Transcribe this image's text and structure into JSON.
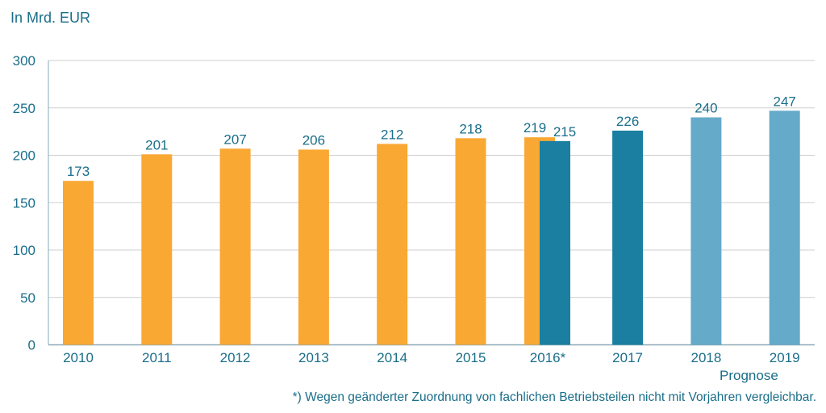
{
  "chart_data": {
    "type": "bar",
    "unit_label": "In Mrd. EUR",
    "categories": [
      "2010",
      "2011",
      "2012",
      "2013",
      "2014",
      "2015",
      "2016*",
      "2017",
      "2018",
      "2019"
    ],
    "category_note": {
      "2018-2019": "Prognose"
    },
    "series": [
      {
        "values": [
          173,
          201,
          207,
          206,
          212,
          218,
          219,
          null,
          null,
          null
        ],
        "color": "#F9A834"
      },
      {
        "values": [
          null,
          null,
          null,
          null,
          null,
          null,
          215,
          226,
          null,
          null
        ],
        "color": "#1A7FA0"
      },
      {
        "values": [
          null,
          null,
          null,
          null,
          null,
          null,
          null,
          null,
          240,
          247
        ],
        "color": "#66AACA"
      }
    ],
    "ylim": [
      0,
      300
    ],
    "yticks": [
      0,
      50,
      100,
      150,
      200,
      250,
      300
    ],
    "grid": true,
    "data_labels": true,
    "footnote": "*) Wegen geänderter Zuordnung von fachlichen Betriebsteilen nicht mit Vorjahren vergleichbar."
  }
}
